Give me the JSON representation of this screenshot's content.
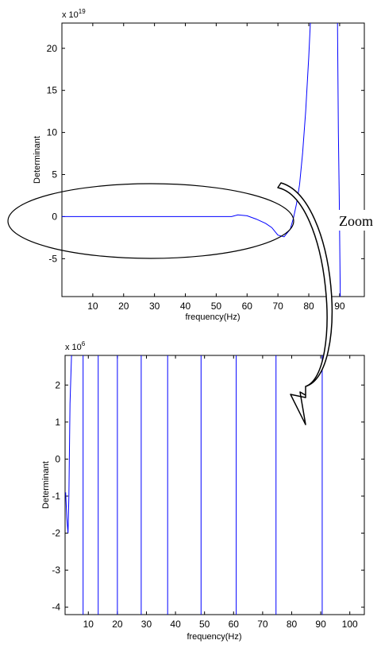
{
  "chart_data": [
    {
      "type": "line",
      "xlabel": "frequency(Hz)",
      "ylabel": "Determinant",
      "y_scale_label": "x 10",
      "y_scale_exp": "19",
      "xlim": [
        0,
        98
      ],
      "ylim": [
        -9.5,
        23
      ],
      "xticks": [
        10,
        20,
        30,
        40,
        50,
        60,
        70,
        80,
        90
      ],
      "yticks": [
        -5,
        0,
        5,
        10,
        15,
        20
      ],
      "line_color": "#0000ff",
      "series": [
        {
          "x": [
            0,
            10,
            20,
            30,
            40,
            50,
            55,
            57,
            60,
            63,
            66,
            68,
            70,
            72,
            74,
            75,
            76,
            77,
            78,
            79,
            80,
            80.5
          ],
          "y": [
            0,
            0,
            0,
            0,
            0,
            0,
            0,
            0.2,
            0.1,
            -0.3,
            -0.8,
            -1.3,
            -2.2,
            -2.4,
            -1.5,
            -0.2,
            1.5,
            3.8,
            7.5,
            12.5,
            19,
            23
          ]
        },
        {
          "x": [
            89.3,
            89.6,
            89.9,
            90.2
          ],
          "y": [
            23,
            10,
            1.5,
            -9.5
          ]
        }
      ]
    },
    {
      "type": "line",
      "xlabel": "frequency(Hz)",
      "ylabel": "Determinant",
      "y_scale_label": "x 10",
      "y_scale_exp": "6",
      "xlim": [
        2,
        105
      ],
      "ylim": [
        -4.2,
        2.8
      ],
      "xticks": [
        10,
        20,
        30,
        40,
        50,
        60,
        70,
        80,
        90,
        100
      ],
      "yticks": [
        -4,
        -3,
        -2,
        -1,
        0,
        1,
        2
      ],
      "line_color": "#0000ff",
      "initial_curve": {
        "x": [
          2.2,
          2.6,
          3.0,
          3.3,
          3.7,
          4.2
        ],
        "y": [
          -0.9,
          -1.6,
          -2.0,
          -1.0,
          1.5,
          2.8
        ]
      },
      "resonance_lines_x": [
        8.2,
        13.4,
        20.0,
        28.2,
        37.3,
        48.8,
        60.9,
        74.6,
        90.5
      ]
    }
  ],
  "annotation": {
    "label": "Zoom"
  }
}
